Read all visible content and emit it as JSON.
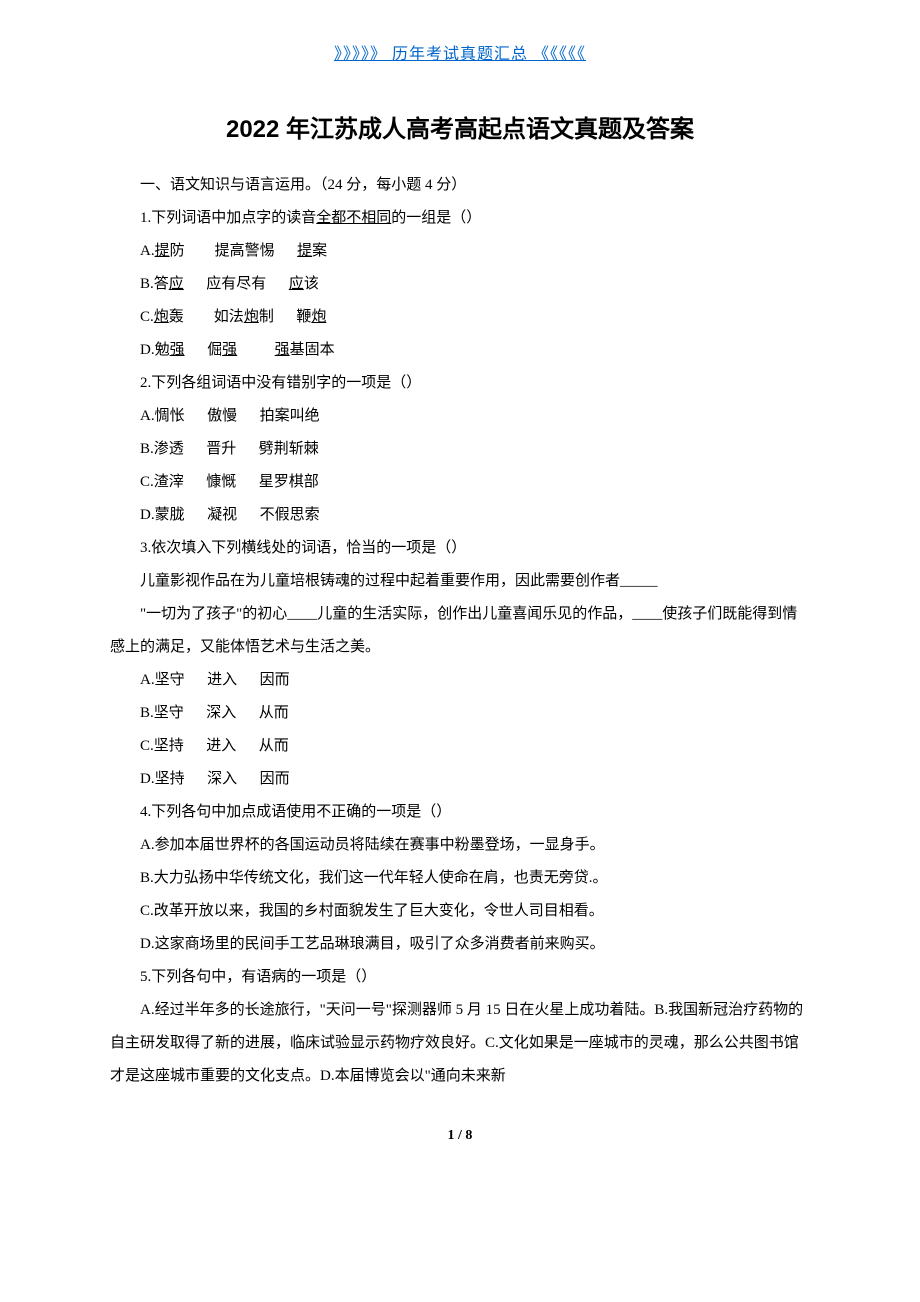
{
  "header_link": "》》》》》 历年考试真题汇总 《《《《《",
  "title": "2022 年江苏成人高考高起点语文真题及答案",
  "section1": {
    "header": "一、语文知识与语言运用。（24 分，每小题 4 分）",
    "q1": {
      "prefix": "1.下列词语中加点字的读音",
      "underlined": "全都不相同",
      "suffix": "的一组是（）",
      "options": [
        {
          "label": "A.",
          "u1": "提",
          "t1": "防",
          "spacer1": "        ",
          "t2": "提高警惕",
          "spacer2": "      ",
          "u3": "提",
          "t3": "案"
        },
        {
          "label": "B.答",
          "u1": "应",
          "t1": "",
          "spacer1": "      ",
          "t2": "应有尽有",
          "spacer2": "      ",
          "u3": "应",
          "t3": "该"
        },
        {
          "label": "C.",
          "u1": "炮",
          "t1": "轰",
          "spacer1": "        ",
          "t2_pre": "如法",
          "u2": "炮",
          "t2_post": "制",
          "spacer2": "      ",
          "t3_pre": "鞭",
          "u3": "炮",
          "t3": ""
        },
        {
          "label": "D.勉",
          "u1": "强",
          "t1": "",
          "spacer1": "      ",
          "t2_pre": "倔",
          "u2": "强",
          "t2_post": "",
          "spacer2": "          ",
          "u3": "强",
          "t3": "基固本"
        }
      ]
    },
    "q2": {
      "text": "2.下列各组词语中没有错别字的一项是（）",
      "options": [
        "A.惆怅      傲慢      拍案叫绝",
        "B.渗透      晋升      劈荆斩棘",
        "C.渣滓      慷慨      星罗棋部",
        "D.蒙胧      凝视      不假思索"
      ]
    },
    "q3": {
      "text": "3.依次填入下列横线处的词语，恰当的一项是（）",
      "para1": "儿童影视作品在为儿童培根铸魂的过程中起着重要作用，因此需要创作者_____",
      "para2": "\"一切为了孩子\"的初心____儿童的生活实际，创作出儿童喜闻乐见的作品，____使孩子们既能得到情感上的满足，又能体悟艺术与生活之美。",
      "options": [
        "A.坚守      进入      因而",
        "B.坚守      深入      从而",
        "C.坚持      进入      从而",
        "D.坚持      深入      因而"
      ]
    },
    "q4": {
      "text": "4.下列各句中加点成语使用不正确的一项是（）",
      "options": [
        "A.参加本届世界杯的各国运动员将陆续在赛事中粉墨登场，一显身手。",
        "B.大力弘扬中华传统文化，我们这一代年轻人使命在肩，也责无旁贷.。",
        "C.改革开放以来，我国的乡村面貌发生了巨大变化，令世人司目相看。",
        "D.这家商场里的民间手工艺品琳琅满目，吸引了众多消费者前来购买。"
      ]
    },
    "q5": {
      "text": "5.下列各句中，有语病的一项是（）",
      "para": "A.经过半年多的长途旅行，\"天问一号\"探测器师 5 月 15 日在火星上成功着陆。B.我国新冠治疗药物的自主研发取得了新的进展，临床试验显示药物疗效良好。C.文化如果是一座城市的灵魂，那么公共图书馆才是这座城市重要的文化支点。D.本届博览会以\"通向未来新"
    }
  },
  "page_number": "1 / 8"
}
